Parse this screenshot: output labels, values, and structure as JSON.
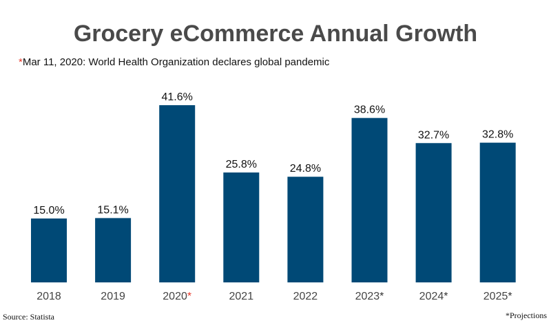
{
  "title": "Grocery eCommerce Annual Growth",
  "subtitle": {
    "marker": "*",
    "text": "Mar 11, 2020: World Health Organization declares global pandemic"
  },
  "source": "Source: Statista",
  "footnote": "*Projections",
  "chart_data": {
    "type": "bar",
    "title": "Grocery eCommerce Annual Growth",
    "categories": [
      "2018",
      "2019",
      "2020",
      "2021",
      "2022",
      "2023",
      "2024",
      "2025"
    ],
    "category_markers": [
      "",
      "",
      "*",
      "",
      "",
      "*",
      "*",
      "*"
    ],
    "values": [
      15.0,
      15.1,
      41.6,
      25.8,
      24.8,
      38.6,
      32.7,
      32.8
    ],
    "data_labels": [
      "15.0%",
      "15.1%",
      "41.6%",
      "25.8%",
      "24.8%",
      "38.6%",
      "32.7%",
      "32.8%"
    ],
    "ylim": [
      0,
      45
    ],
    "grid": false,
    "bar_color": "#004976",
    "marker_colors": {
      "2020": "#e8392b",
      "projection": "#333333"
    }
  }
}
